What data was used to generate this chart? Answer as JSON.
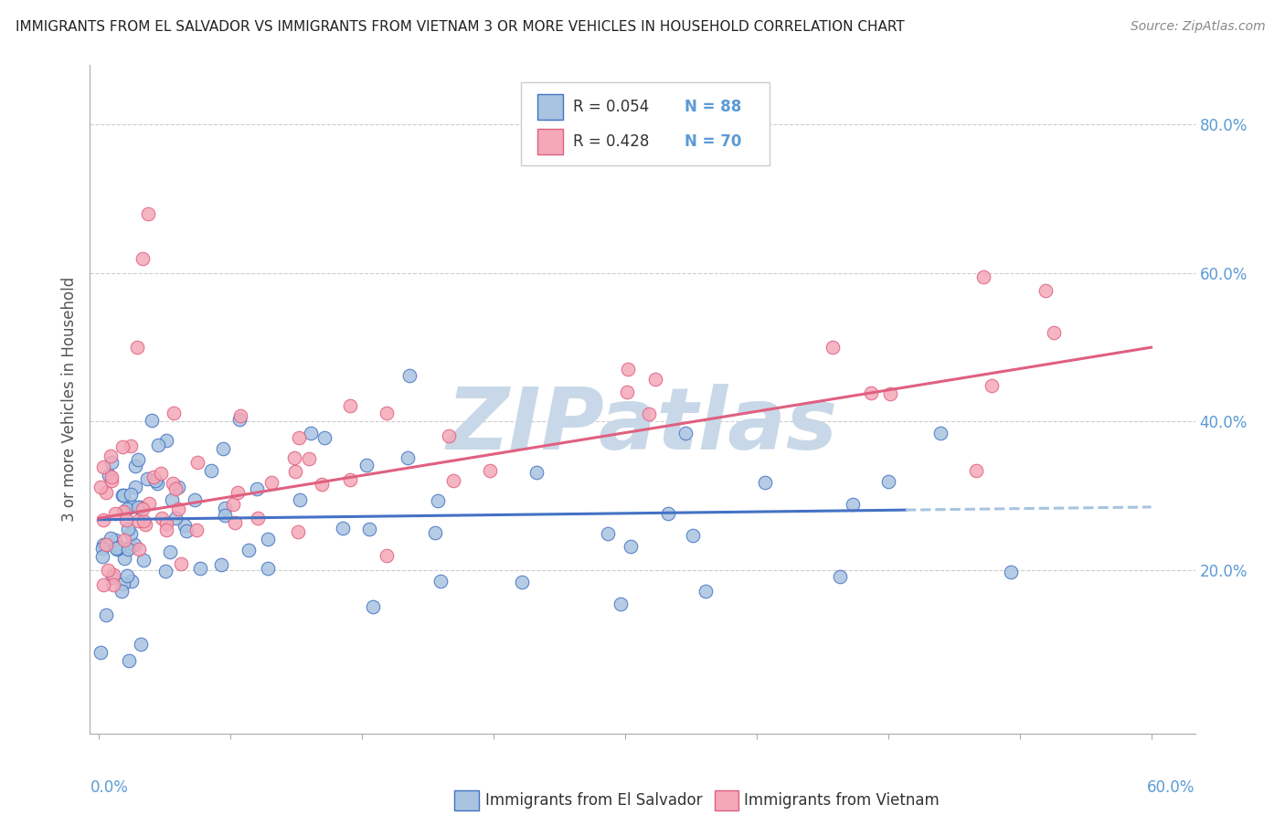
{
  "title": "IMMIGRANTS FROM EL SALVADOR VS IMMIGRANTS FROM VIETNAM 3 OR MORE VEHICLES IN HOUSEHOLD CORRELATION CHART",
  "source": "Source: ZipAtlas.com",
  "ylabel": "3 or more Vehicles in Household",
  "xlim": [
    0.0,
    0.6
  ],
  "ylim": [
    0.0,
    0.85
  ],
  "legend_r1": "R = 0.054",
  "legend_n1": "N = 88",
  "legend_r2": "R = 0.428",
  "legend_n2": "N = 70",
  "color_salvador": "#a8c4e0",
  "color_vietnam": "#f4a8b8",
  "line_salvador": "#4472c4",
  "line_vietnam": "#e06080",
  "line_dashed": "#a8c4e0",
  "watermark": "ZIPatlas",
  "watermark_color": "#c8d8e8",
  "label_salvador": "Immigrants from El Salvador",
  "label_vietnam": "Immigrants from Vietnam",
  "right_ytick_vals": [
    0.2,
    0.4,
    0.6,
    0.8
  ],
  "right_ytick_labels": [
    "20.0%",
    "40.0%",
    "60.0%",
    "80.0%"
  ],
  "xtick_vals": [
    0.0,
    0.075,
    0.15,
    0.225,
    0.3,
    0.375,
    0.45,
    0.525,
    0.6
  ]
}
